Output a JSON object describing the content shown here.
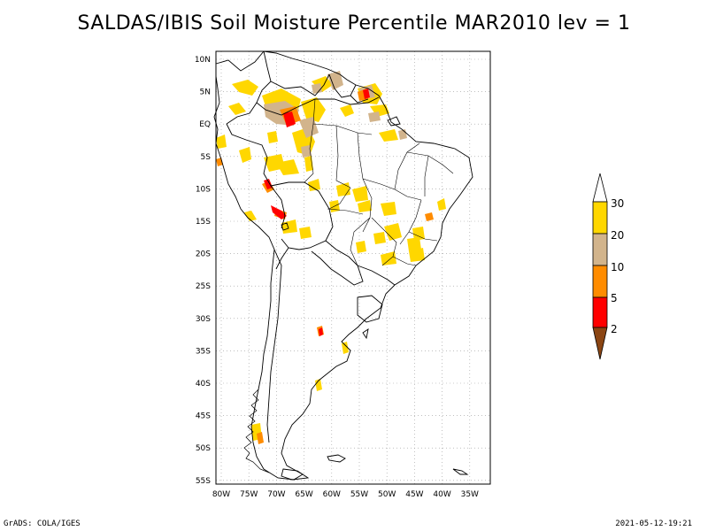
{
  "header": {
    "title": "SALDAS/IBIS Soil Moisture Percentile MAR2010 lev = 1"
  },
  "map": {
    "lon_range": [
      -80,
      -30
    ],
    "lat_range": [
      -55,
      11
    ],
    "lon_ticks": [
      "80W",
      "75W",
      "70W",
      "65W",
      "60W",
      "55W",
      "50W",
      "45W",
      "40W",
      "35W"
    ],
    "lat_ticks": [
      "10N",
      "5N",
      "EQ",
      "5S",
      "10S",
      "15S",
      "20S",
      "25S",
      "30S",
      "35S",
      "40S",
      "45S",
      "50S",
      "55S"
    ],
    "grid": "dotted",
    "colors": {
      "lt2": "#8B4513",
      "2-5": "#ff0000",
      "5-10": "#ff8c00",
      "10-20": "#d2b48c",
      "20-30": "#ffd700"
    }
  },
  "colorbar": {
    "labels": [
      "2",
      "5",
      "10",
      "20",
      "30"
    ]
  },
  "footer": {
    "left": "GrADS: COLA/IGES",
    "right": "2021-05-12-19:21"
  }
}
